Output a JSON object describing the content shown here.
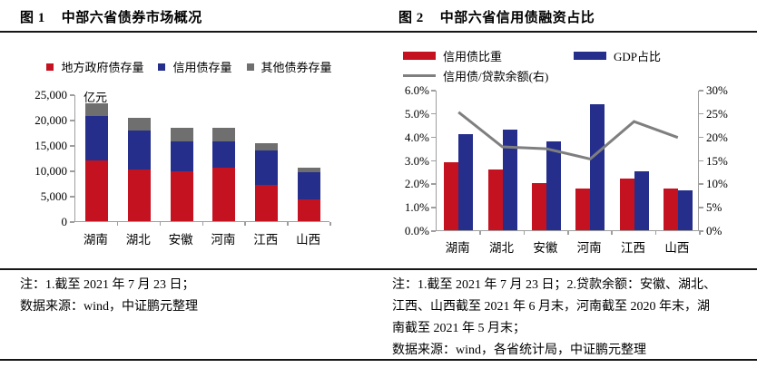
{
  "panels": {
    "left": {
      "fig_label": "图 1",
      "title": "中部六省债券市场概况",
      "notes": [
        "注：1.截至 2021 年 7 月 23 日；",
        "数据来源：wind，中证鹏元整理"
      ]
    },
    "right": {
      "fig_label": "图 2",
      "title": "中部六省信用债融资占比",
      "notes": [
        "注：1.截至 2021 年 7 月 23 日；2.贷款余额：安徽、湖北、",
        "江西、山西截至 2021 年 6 月末，河南截至 2020 年末，湖",
        "南截至 2021 年 5 月末；",
        "数据来源：wind，各省统计局，中证鹏元整理"
      ]
    }
  },
  "colors": {
    "red": "#C41220",
    "blue": "#252F8B",
    "gray_bar": "#6F6F6F",
    "gray_line": "#7F7F7F",
    "axis": "#9E9E9E",
    "rule": "#161616"
  },
  "chart_data": [
    {
      "type": "bar",
      "stacked": true,
      "title": "中部六省债券市场概况",
      "unit_label": "亿元",
      "categories": [
        "湖南",
        "湖北",
        "安徽",
        "河南",
        "江西",
        "山西"
      ],
      "series": [
        {
          "name": "地方政府债存量",
          "color": "#C41220",
          "values": [
            12000,
            10200,
            9800,
            10500,
            7100,
            4200
          ]
        },
        {
          "name": "信用债存量",
          "color": "#252F8B",
          "values": [
            8700,
            7600,
            5900,
            5300,
            6800,
            5400
          ]
        },
        {
          "name": "其他债券存量",
          "color": "#6F6F6F",
          "values": [
            2500,
            2500,
            2700,
            2600,
            1500,
            1000
          ]
        }
      ],
      "ylim": [
        0,
        25000
      ],
      "ytick_step": 5000,
      "ytick_labels": [
        "0",
        "5,000",
        "10,000",
        "15,000",
        "20,000",
        "25,000"
      ],
      "legend_position": "top",
      "grid": false
    },
    {
      "type": "bar+line",
      "title": "中部六省信用债融资占比",
      "categories": [
        "湖南",
        "湖北",
        "安徽",
        "河南",
        "江西",
        "山西"
      ],
      "series": [
        {
          "name": "信用债比重",
          "kind": "bar",
          "axis": "left",
          "color": "#C41220",
          "values": [
            2.9,
            2.6,
            2.0,
            1.8,
            2.2,
            1.8
          ]
        },
        {
          "name": "GDP占比",
          "kind": "bar",
          "axis": "left",
          "color": "#252F8B",
          "values": [
            4.1,
            4.3,
            3.8,
            5.4,
            2.5,
            1.7
          ]
        },
        {
          "name": "信用债/贷款余额(右)",
          "kind": "line",
          "axis": "right",
          "color": "#7F7F7F",
          "values": [
            25.4,
            18.0,
            17.6,
            15.4,
            23.4,
            20.0
          ]
        }
      ],
      "left_ylim": [
        0,
        6
      ],
      "left_ytick_labels": [
        "0.0%",
        "1.0%",
        "2.0%",
        "3.0%",
        "4.0%",
        "5.0%",
        "6.0%"
      ],
      "right_ylim": [
        0,
        30
      ],
      "right_ytick_labels": [
        "0%",
        "5%",
        "10%",
        "15%",
        "20%",
        "25%",
        "30%"
      ],
      "legend_position": "top",
      "grid": false
    }
  ]
}
